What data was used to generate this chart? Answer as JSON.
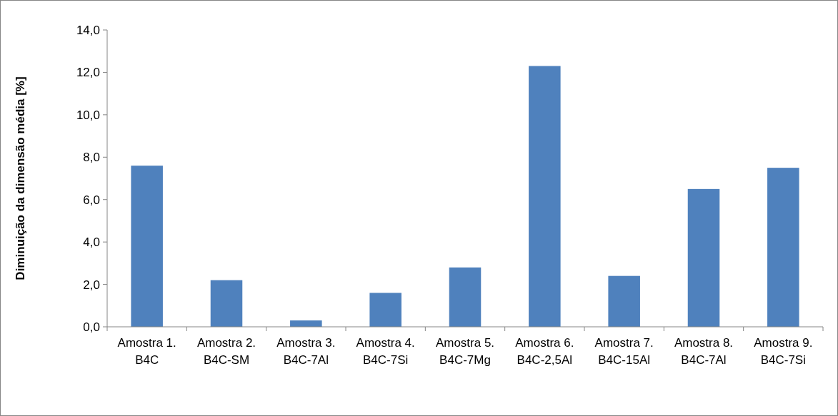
{
  "chart_data": {
    "type": "bar",
    "ylabel": "Diminuição da dimensão média [%]",
    "categories": [
      "Amostra 1. B4C",
      "Amostra 2. B4C-SM",
      "Amostra 3. B4C-7Al",
      "Amostra 4. B4C-7Si",
      "Amostra 5. B4C-7Mg",
      "Amostra 6. B4C-2,5Al",
      "Amostra 7. B4C-15Al",
      "Amostra 8. B4C-7Al",
      "Amostra 9. B4C-7Si"
    ],
    "values": [
      7.6,
      2.2,
      0.3,
      1.6,
      2.8,
      12.3,
      2.4,
      6.5,
      7.5
    ],
    "color": "#4f81bd",
    "ylim": [
      0,
      14
    ],
    "yticks": [
      {
        "value": 0,
        "label": "0,0"
      },
      {
        "value": 2,
        "label": "2,0"
      },
      {
        "value": 4,
        "label": "4,0"
      },
      {
        "value": 6,
        "label": "6,0"
      },
      {
        "value": 8,
        "label": "8,0"
      },
      {
        "value": 10,
        "label": "10,0"
      },
      {
        "value": 12,
        "label": "12,0"
      },
      {
        "value": 14,
        "label": "14,0"
      }
    ],
    "grid": false
  }
}
